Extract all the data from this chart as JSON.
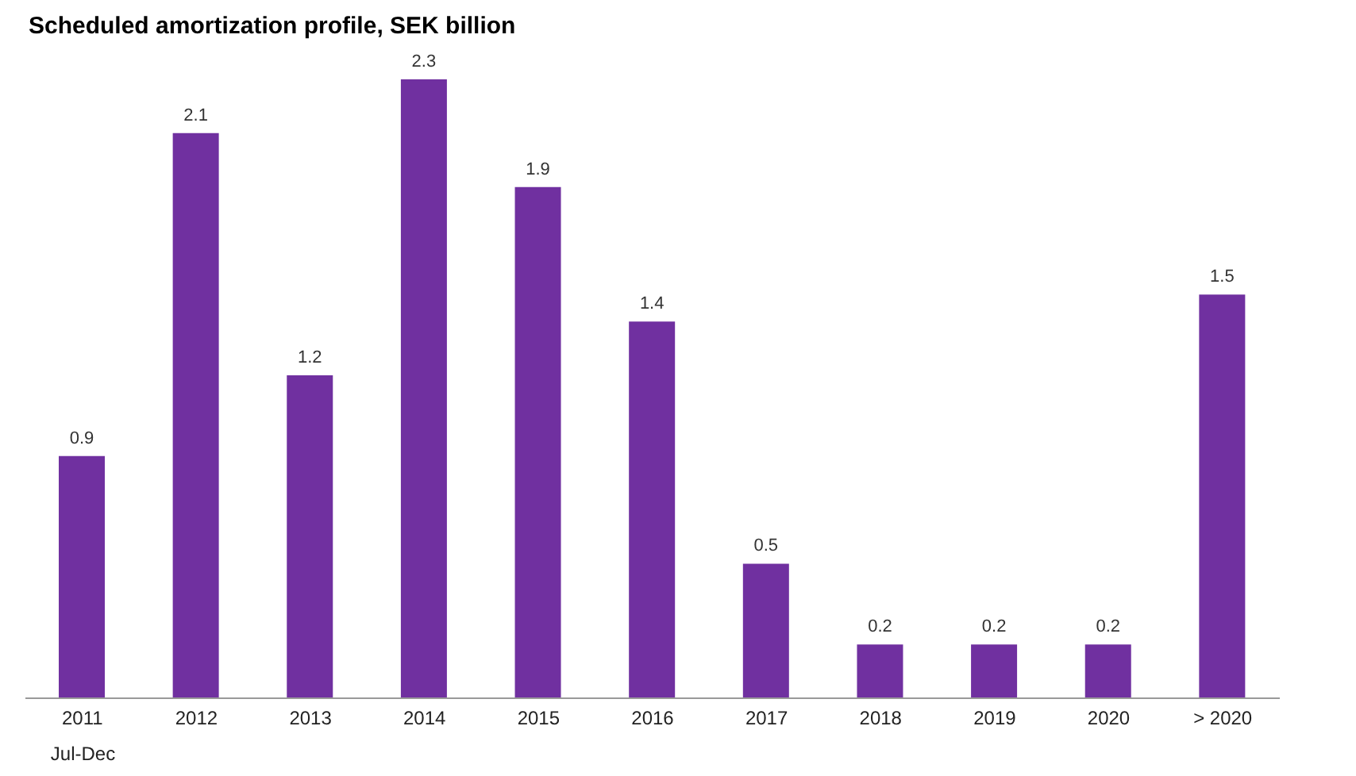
{
  "chart_data": {
    "type": "bar",
    "title": "Scheduled amortization profile, SEK billion",
    "categories": [
      "2011",
      "2012",
      "2013",
      "2014",
      "2015",
      "2016",
      "2017",
      "2018",
      "2019",
      "2020",
      "> 2020"
    ],
    "values": [
      0.9,
      2.1,
      1.2,
      2.3,
      1.9,
      1.4,
      0.5,
      0.2,
      0.2,
      0.2,
      1.5
    ],
    "color": "#7030a0",
    "data_labels": true,
    "annotations": [
      "Jul-Dec"
    ]
  }
}
